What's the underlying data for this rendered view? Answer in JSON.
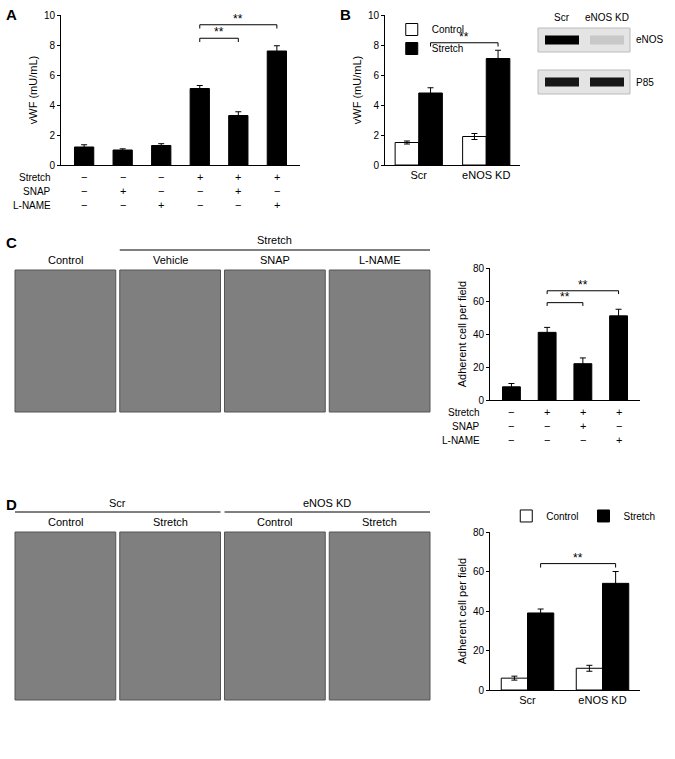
{
  "chart_data": [
    {
      "panel": "A",
      "type": "bar",
      "categories": [
        null,
        null,
        null,
        null,
        null,
        null
      ],
      "values": [
        1.2,
        1.0,
        1.3,
        5.1,
        3.3,
        7.6
      ],
      "errors": [
        0.15,
        0.08,
        0.12,
        0.2,
        0.25,
        0.35
      ],
      "color": "#000000",
      "ylabel": "vWF (mU/mL)",
      "ylim": [
        0,
        10
      ],
      "yticks": [
        0,
        2,
        4,
        6,
        8,
        10
      ],
      "grid": false,
      "tick_labels": "y",
      "table": [
        {
          "label": "Stretch",
          "marks": [
            "−",
            "−",
            "−",
            "+",
            "+",
            "+"
          ]
        },
        {
          "label": "SNAP",
          "marks": [
            "−",
            "+",
            "−",
            "−",
            "+",
            "−"
          ]
        },
        {
          "label": "L-NAME",
          "marks": [
            "−",
            "−",
            "+",
            "−",
            "−",
            "+"
          ]
        }
      ],
      "annotations": [
        {
          "text": "**",
          "between": [
            3,
            4
          ]
        },
        {
          "text": "**",
          "between": [
            3,
            5
          ]
        }
      ]
    },
    {
      "panel": "B",
      "type": "bar",
      "categories": [
        "Scr",
        "eNOS KD"
      ],
      "series": [
        {
          "name": "Control",
          "color": "#ffffff",
          "values": [
            1.5,
            1.9
          ],
          "errors": [
            0.1,
            0.2
          ]
        },
        {
          "name": "Stretch",
          "color": "#000000",
          "values": [
            4.8,
            7.1
          ],
          "errors": [
            0.35,
            0.55
          ]
        }
      ],
      "ylabel": "vWF (mU/mL)",
      "ylim": [
        0,
        10
      ],
      "yticks": [
        0,
        2,
        4,
        6,
        8,
        10
      ],
      "grid": false,
      "legend": "upper left",
      "annotations": [
        {
          "text": "**",
          "series": "Stretch",
          "between": [
            0,
            1
          ]
        }
      ],
      "blot": {
        "lanes": [
          "Scr",
          "eNOS KD"
        ],
        "rows": [
          {
            "label": "eNOS",
            "intensity": [
              1,
              0.12
            ]
          },
          {
            "label": "P85",
            "intensity": [
              0.9,
              0.9
            ]
          }
        ]
      }
    },
    {
      "panel": "C",
      "type": "bar",
      "categories": [
        null,
        null,
        null,
        null
      ],
      "values": [
        8,
        41,
        22,
        51
      ],
      "errors": [
        2,
        3,
        3.5,
        4
      ],
      "color": "#000000",
      "ylabel": "Adherent cell per field",
      "ylim": [
        0,
        80
      ],
      "yticks": [
        0,
        20,
        40,
        60,
        80
      ],
      "grid": false,
      "tick_labels": "y",
      "table": [
        {
          "label": "Stretch",
          "marks": [
            "−",
            "+",
            "+",
            "+"
          ]
        },
        {
          "label": "SNAP",
          "marks": [
            "−",
            "−",
            "+",
            "−"
          ]
        },
        {
          "label": "L-NAME",
          "marks": [
            "−",
            "−",
            "−",
            "+"
          ]
        }
      ],
      "annotations": [
        {
          "text": "**",
          "between": [
            1,
            2
          ]
        },
        {
          "text": "**",
          "between": [
            1,
            3
          ]
        }
      ],
      "images": {
        "labels": [
          "Control",
          "Vehicle",
          "SNAP",
          "L-NAME"
        ],
        "groups": [
          {
            "label": "Stretch",
            "between": [
              1,
              3
            ]
          }
        ]
      }
    },
    {
      "panel": "D",
      "type": "bar",
      "categories": [
        "Scr",
        "eNOS KD"
      ],
      "series": [
        {
          "name": "Control",
          "color": "#ffffff",
          "values": [
            6,
            11
          ],
          "errors": [
            1,
            1.5
          ]
        },
        {
          "name": "Stretch",
          "color": "#000000",
          "values": [
            39,
            54
          ],
          "errors": [
            2,
            6
          ]
        }
      ],
      "ylabel": "Adherent cell per field",
      "ylim": [
        0,
        80
      ],
      "yticks": [
        0,
        20,
        40,
        60,
        80
      ],
      "grid": false,
      "legend": "upper right",
      "annotations": [
        {
          "text": "**",
          "series": "Stretch",
          "between": [
            0,
            1
          ]
        }
      ],
      "images": {
        "labels": [
          "Control",
          "Stretch",
          "Control",
          "Stretch"
        ],
        "groups": [
          {
            "label": "Scr",
            "between": [
              0,
              1
            ]
          },
          {
            "label": "eNOS KD",
            "between": [
              2,
              3
            ]
          }
        ]
      }
    }
  ]
}
